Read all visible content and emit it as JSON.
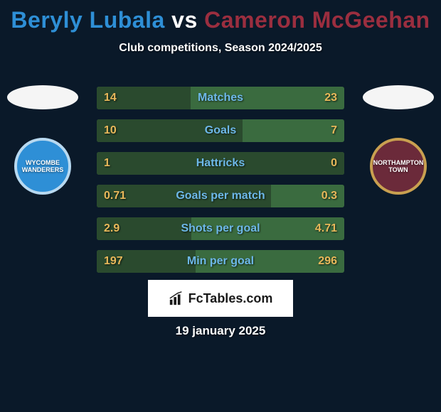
{
  "title": {
    "player1": "Beryly Lubala",
    "player2": "Cameron McGeehan",
    "vs": "vs",
    "player1_color": "#2e8fd6",
    "player2_color": "#9b2e3f"
  },
  "subtitle": "Club competitions, Season 2024/2025",
  "background_color": "#0a1929",
  "left_ellipse_color": "#f5f5f5",
  "right_ellipse_color": "#f5f5f5",
  "left_badge": {
    "label": "WYCOMBE WANDERERS",
    "bg": "#2e8fd6",
    "border": "#b8d9f0"
  },
  "right_badge": {
    "label": "NORTHAMPTON TOWN",
    "bg": "#6b2a3a",
    "border": "#c9a050"
  },
  "bar_bg": "#3a6b3f",
  "bar_left_fill": "#2a4a2e",
  "bar_label_color": "#6db8e8",
  "bar_val_left_color": "#e8b85a",
  "bar_val_right_color": "#e8b85a",
  "rows": [
    {
      "label": "Matches",
      "left": "14",
      "right": "23",
      "left_pct": 37.8,
      "right_pct": 0
    },
    {
      "label": "Goals",
      "left": "10",
      "right": "7",
      "left_pct": 58.8,
      "right_pct": 0
    },
    {
      "label": "Hattricks",
      "left": "1",
      "right": "0",
      "left_pct": 100,
      "right_pct": 0
    },
    {
      "label": "Goals per match",
      "left": "0.71",
      "right": "0.3",
      "left_pct": 70.3,
      "right_pct": 0
    },
    {
      "label": "Shots per goal",
      "left": "2.9",
      "right": "4.71",
      "left_pct": 38.1,
      "right_pct": 0
    },
    {
      "label": "Min per goal",
      "left": "197",
      "right": "296",
      "left_pct": 40.0,
      "right_pct": 0
    }
  ],
  "attribution": "FcTables.com",
  "date": "19 january 2025"
}
